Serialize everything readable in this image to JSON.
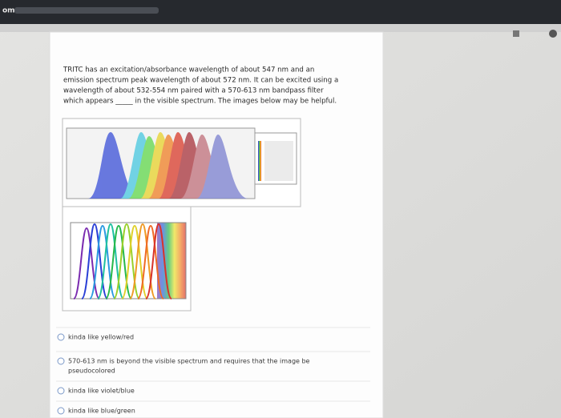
{
  "browser": {
    "url_fragment": "om"
  },
  "question": {
    "lines": [
      "TRITC has an excitation/absorbance wavelength of about 547 nm and an",
      "emission spectrum peak wavelength of about 572 nm. It can be excited using a",
      "wavelength of about 532-554 nm paired with a 570-613 nm bandpass filter",
      "which appears _____ in the visible spectrum. The images below may be helpful."
    ]
  },
  "options": [
    [
      "kinda like yellow/red"
    ],
    [
      "570-613 nm is beyond the visible spectrum and requires that the image be",
      "pseudocolored"
    ],
    [
      "kinda like violet/blue"
    ],
    [
      "kinda like blue/green"
    ]
  ]
}
